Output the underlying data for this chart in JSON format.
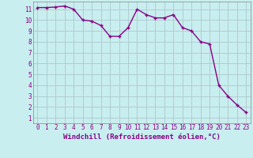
{
  "x": [
    0,
    1,
    2,
    3,
    4,
    5,
    6,
    7,
    8,
    9,
    10,
    11,
    12,
    13,
    14,
    15,
    16,
    17,
    18,
    19,
    20,
    21,
    22,
    23
  ],
  "y": [
    11.15,
    11.15,
    11.2,
    11.3,
    11.0,
    10.0,
    9.9,
    9.5,
    8.5,
    8.5,
    9.3,
    11.0,
    10.5,
    10.2,
    10.2,
    10.5,
    9.3,
    9.0,
    8.0,
    7.8,
    4.0,
    3.0,
    2.2,
    1.5
  ],
  "line_color": "#880088",
  "marker": "+",
  "marker_size": 3.5,
  "marker_lw": 1.0,
  "xlabel": "Windchill (Refroidissement éolien,°C)",
  "xlim": [
    -0.5,
    23.5
  ],
  "ylim": [
    0.5,
    11.7
  ],
  "xticks": [
    0,
    1,
    2,
    3,
    4,
    5,
    6,
    7,
    8,
    9,
    10,
    11,
    12,
    13,
    14,
    15,
    16,
    17,
    18,
    19,
    20,
    21,
    22,
    23
  ],
  "yticks": [
    1,
    2,
    3,
    4,
    5,
    6,
    7,
    8,
    9,
    10,
    11
  ],
  "bg_color": "#c8eef0",
  "grid_color": "#b0c8c8",
  "line_width": 1.0,
  "xlabel_fontsize": 6.5,
  "tick_fontsize": 5.5,
  "label_color": "#880088"
}
